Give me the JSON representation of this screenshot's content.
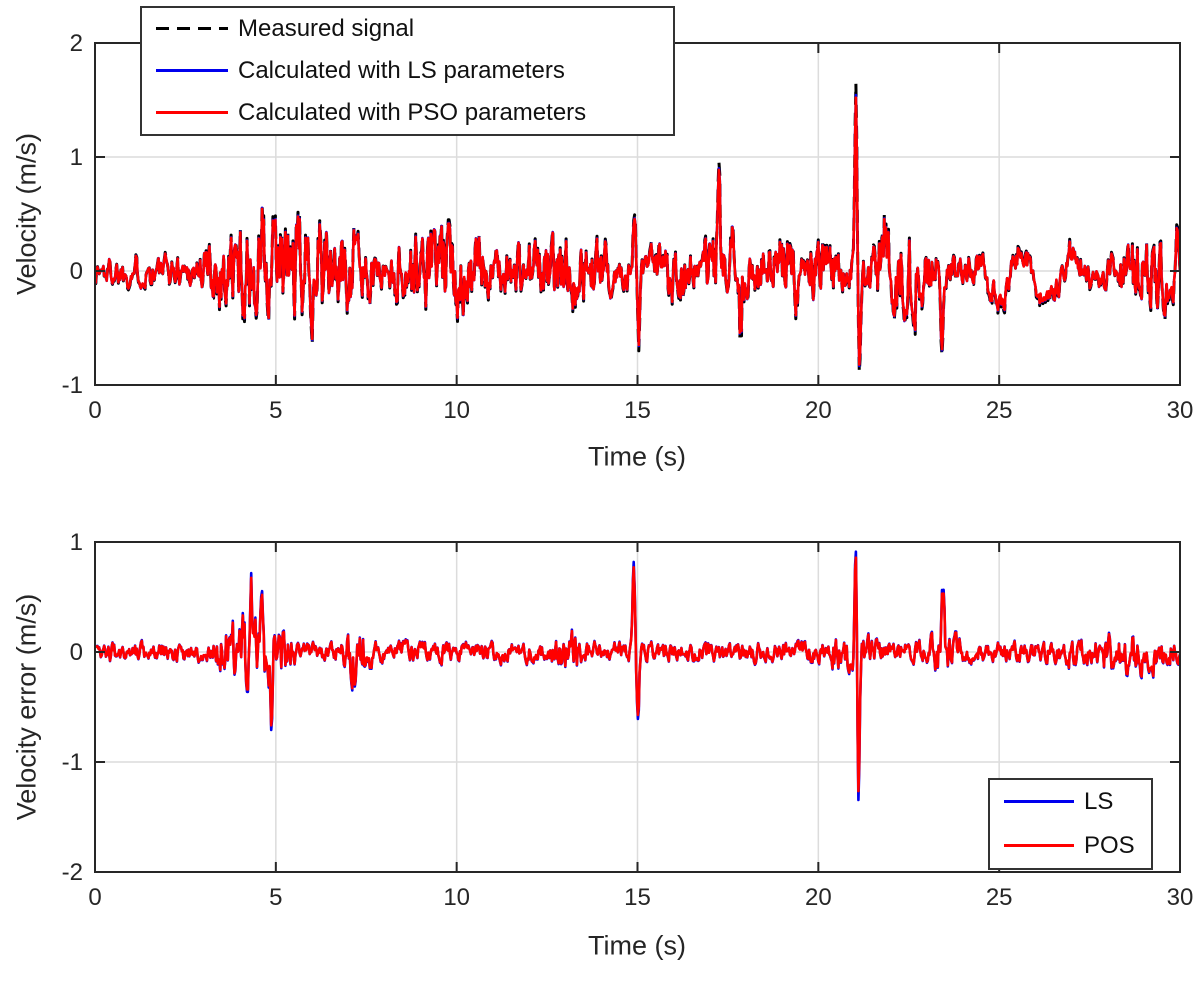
{
  "figure": {
    "background": "#ffffff",
    "axis_color": "#262626",
    "grid_color": "#dcdcdc",
    "text_color": "#262626",
    "tick_font_size": 24,
    "label_font_size": 27,
    "legend_font_size": 24
  },
  "chart_data": [
    {
      "type": "line",
      "title": "",
      "xlabel": "Time (s)",
      "ylabel": "Velocity (m/s)",
      "xlim": [
        0,
        30
      ],
      "ylim": [
        -1,
        2
      ],
      "xticks": [
        0,
        5,
        10,
        15,
        20,
        25,
        30
      ],
      "yticks": [
        -1,
        0,
        1,
        2
      ],
      "grid": true,
      "legend_position": "top-left",
      "series": [
        {
          "name": "Measured signal",
          "color": "#000000",
          "style": "dashed",
          "width": 3,
          "scale": 1.0
        },
        {
          "name": "Calculated with LS parameters",
          "color": "#0000ee",
          "style": "solid",
          "width": 2.6,
          "scale": 0.94
        },
        {
          "name": "Calculated with PSO parameters",
          "color": "#ff0000",
          "style": "solid",
          "width": 2.6,
          "scale": 0.926
        }
      ],
      "signal_model": {
        "seed": 1337,
        "n": 1300,
        "base_amplitude": 0.12,
        "bursts": [
          [
            2.8,
            7.8,
            0.3
          ],
          [
            8.0,
            11.0,
            0.21
          ],
          [
            11.0,
            14.6,
            0.14
          ],
          [
            15.3,
            16.6,
            0.13
          ],
          [
            16.7,
            18.1,
            0.2
          ],
          [
            18.1,
            20.8,
            0.17
          ],
          [
            21.3,
            23.3,
            0.2
          ],
          [
            28.2,
            30.0,
            0.16
          ]
        ],
        "slow_wave": {
          "t0": 23.9,
          "t1": 28.3,
          "amp": 0.3,
          "freq": 0.72,
          "bias": -0.08
        },
        "spikes": [
          [
            4.62,
            0.45
          ],
          [
            4.8,
            -0.45
          ],
          [
            6.2,
            0.48
          ],
          [
            7.15,
            0.52
          ],
          [
            9.35,
            0.35
          ],
          [
            14.93,
            0.62
          ],
          [
            15.03,
            -0.74
          ],
          [
            17.25,
            0.42
          ],
          [
            17.85,
            -0.52
          ],
          [
            21.04,
            1.55
          ],
          [
            21.13,
            -0.88
          ],
          [
            21.85,
            0.36
          ],
          [
            23.42,
            -0.7
          ],
          [
            29.93,
            0.3
          ]
        ]
      }
    },
    {
      "type": "line",
      "title": "",
      "xlabel": "Time (s)",
      "ylabel": "Velocity error (m/s)",
      "xlim": [
        0,
        30
      ],
      "ylim": [
        -2,
        1
      ],
      "xticks": [
        0,
        5,
        10,
        15,
        20,
        25,
        30
      ],
      "yticks": [
        -2,
        -1,
        0,
        1
      ],
      "grid": true,
      "legend_position": "bottom-right",
      "series": [
        {
          "name": "LS",
          "color": "#0000ee",
          "style": "solid",
          "width": 2.6,
          "scale": 1.0
        },
        {
          "name": "POS",
          "color": "#ff0000",
          "style": "solid",
          "width": 2.6,
          "scale": 0.94
        }
      ],
      "signal_model": {
        "seed": 2024,
        "n": 1300,
        "base_amplitude": 0.075,
        "bursts": [
          [
            3.2,
            5.6,
            0.2
          ],
          [
            6.8,
            7.7,
            0.15
          ],
          [
            12.5,
            13.5,
            0.09
          ],
          [
            20.2,
            21.7,
            0.1
          ],
          [
            23.0,
            24.0,
            0.09
          ],
          [
            26.8,
            30.0,
            0.09
          ]
        ],
        "spikes": [
          [
            4.35,
            0.4
          ],
          [
            4.62,
            0.45
          ],
          [
            4.9,
            -0.42
          ],
          [
            7.2,
            -0.48
          ],
          [
            14.9,
            0.75
          ],
          [
            15.02,
            -0.62
          ],
          [
            21.03,
            0.88
          ],
          [
            21.12,
            -1.35
          ],
          [
            23.45,
            0.6
          ]
        ]
      }
    }
  ]
}
